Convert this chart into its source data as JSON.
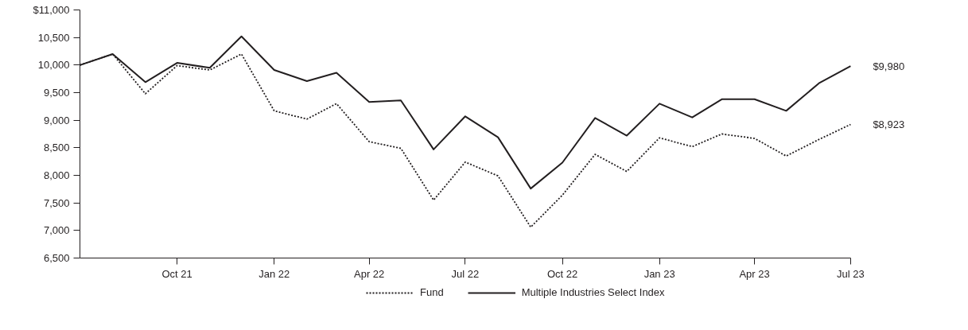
{
  "chart_data": {
    "type": "line",
    "x": [
      "2021-07",
      "2021-08",
      "2021-09",
      "2021-10",
      "2021-11",
      "2021-12",
      "2022-01",
      "2022-02",
      "2022-03",
      "2022-04",
      "2022-05",
      "2022-06",
      "2022-07",
      "2022-08",
      "2022-09",
      "2022-10",
      "2022-11",
      "2022-12",
      "2023-01",
      "2023-02",
      "2023-03",
      "2023-04",
      "2023-05",
      "2023-06",
      "2023-07"
    ],
    "series": [
      {
        "name": "Fund",
        "color": "#231f20",
        "line_style": "dotted",
        "values": [
          10000,
          10200,
          9480,
          9990,
          9910,
          10200,
          9170,
          9020,
          9300,
          8610,
          8490,
          7550,
          8240,
          7990,
          7060,
          7640,
          8380,
          8070,
          8680,
          8520,
          8750,
          8670,
          8350,
          8650,
          8923
        ]
      },
      {
        "name": "Multiple Industries Select Index",
        "color": "#231f20",
        "line_style": "solid",
        "values": [
          10000,
          10200,
          9690,
          10040,
          9950,
          10520,
          9910,
          9710,
          9860,
          9330,
          9360,
          8470,
          9070,
          8690,
          7760,
          8230,
          9040,
          8720,
          9300,
          9050,
          9380,
          9380,
          9170,
          9670,
          9980
        ]
      }
    ],
    "xlim": [
      "2021-07",
      "2023-07"
    ],
    "xticks": [
      {
        "value": "2021-10",
        "label": "Oct 21"
      },
      {
        "value": "2022-01",
        "label": "Jan 22"
      },
      {
        "value": "2022-04",
        "label": "Apr 22"
      },
      {
        "value": "2022-07",
        "label": "Jul 22"
      },
      {
        "value": "2022-10",
        "label": "Oct 22"
      },
      {
        "value": "2023-01",
        "label": "Jan 23"
      },
      {
        "value": "2023-04",
        "label": "Apr 23"
      },
      {
        "value": "2023-07",
        "label": "Jul 23"
      }
    ],
    "ylim": [
      6500,
      11000
    ],
    "yticks": [
      {
        "value": 6500,
        "label": "6,500"
      },
      {
        "value": 7000,
        "label": "7,000"
      },
      {
        "value": 7500,
        "label": "7,500"
      },
      {
        "value": 8000,
        "label": "8,000"
      },
      {
        "value": 8500,
        "label": "8,500"
      },
      {
        "value": 9000,
        "label": "9,000"
      },
      {
        "value": 9500,
        "label": "9,500"
      },
      {
        "value": 10000,
        "label": "10,000"
      },
      {
        "value": 10500,
        "label": "10,500"
      },
      {
        "value": 11000,
        "label": "$11,000"
      }
    ],
    "annotations": [
      {
        "text": "$9,980",
        "x": "2023-07",
        "y": 9980
      },
      {
        "text": "$8,923",
        "x": "2023-07",
        "y": 8923
      }
    ],
    "grid": false,
    "legend": "bottom",
    "marker": "none"
  }
}
